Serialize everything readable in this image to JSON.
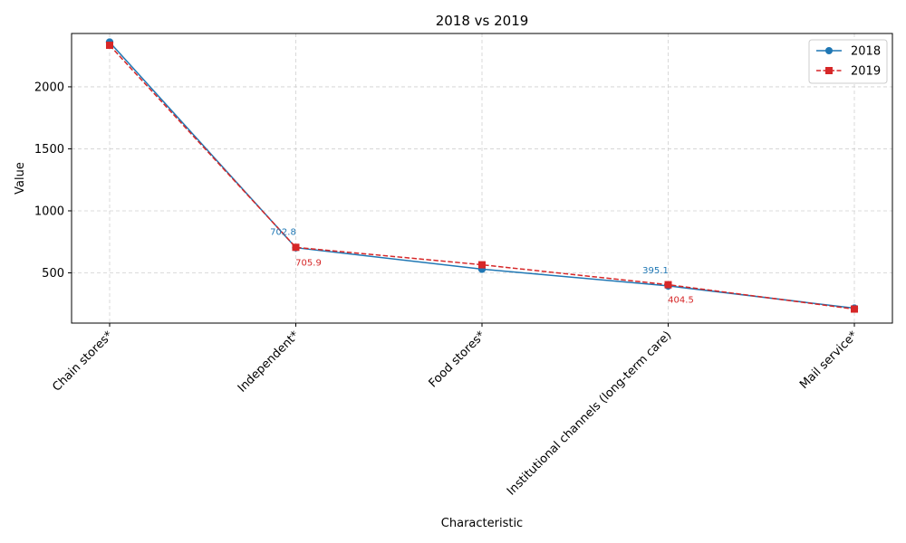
{
  "chart_data": {
    "type": "line",
    "title": "2018 vs 2019",
    "xlabel": "Characteristic",
    "ylabel": "Value",
    "categories": [
      "Chain stores*",
      "Independent*",
      "Food stores*",
      "Institutional channels (long-term care)",
      "Mail service*"
    ],
    "ylim": [
      95,
      2430
    ],
    "yticks": [
      500,
      1000,
      1500,
      2000
    ],
    "grid": true,
    "legend_position": "top-right",
    "series": [
      {
        "name": "2018",
        "color": "#1f77b4",
        "line_style": "solid",
        "marker": "circle",
        "values": [
          2360,
          702.8,
          530,
          395.1,
          215
        ]
      },
      {
        "name": "2019",
        "color": "#d62728",
        "line_style": "dashed",
        "marker": "square",
        "values": [
          2335,
          705.9,
          565,
          404.5,
          208
        ]
      }
    ],
    "annotations": [
      {
        "series": 0,
        "index": 1,
        "text": "702.8"
      },
      {
        "series": 1,
        "index": 1,
        "text": "705.9"
      },
      {
        "series": 0,
        "index": 3,
        "text": "395.1"
      },
      {
        "series": 1,
        "index": 3,
        "text": "404.5"
      }
    ]
  }
}
